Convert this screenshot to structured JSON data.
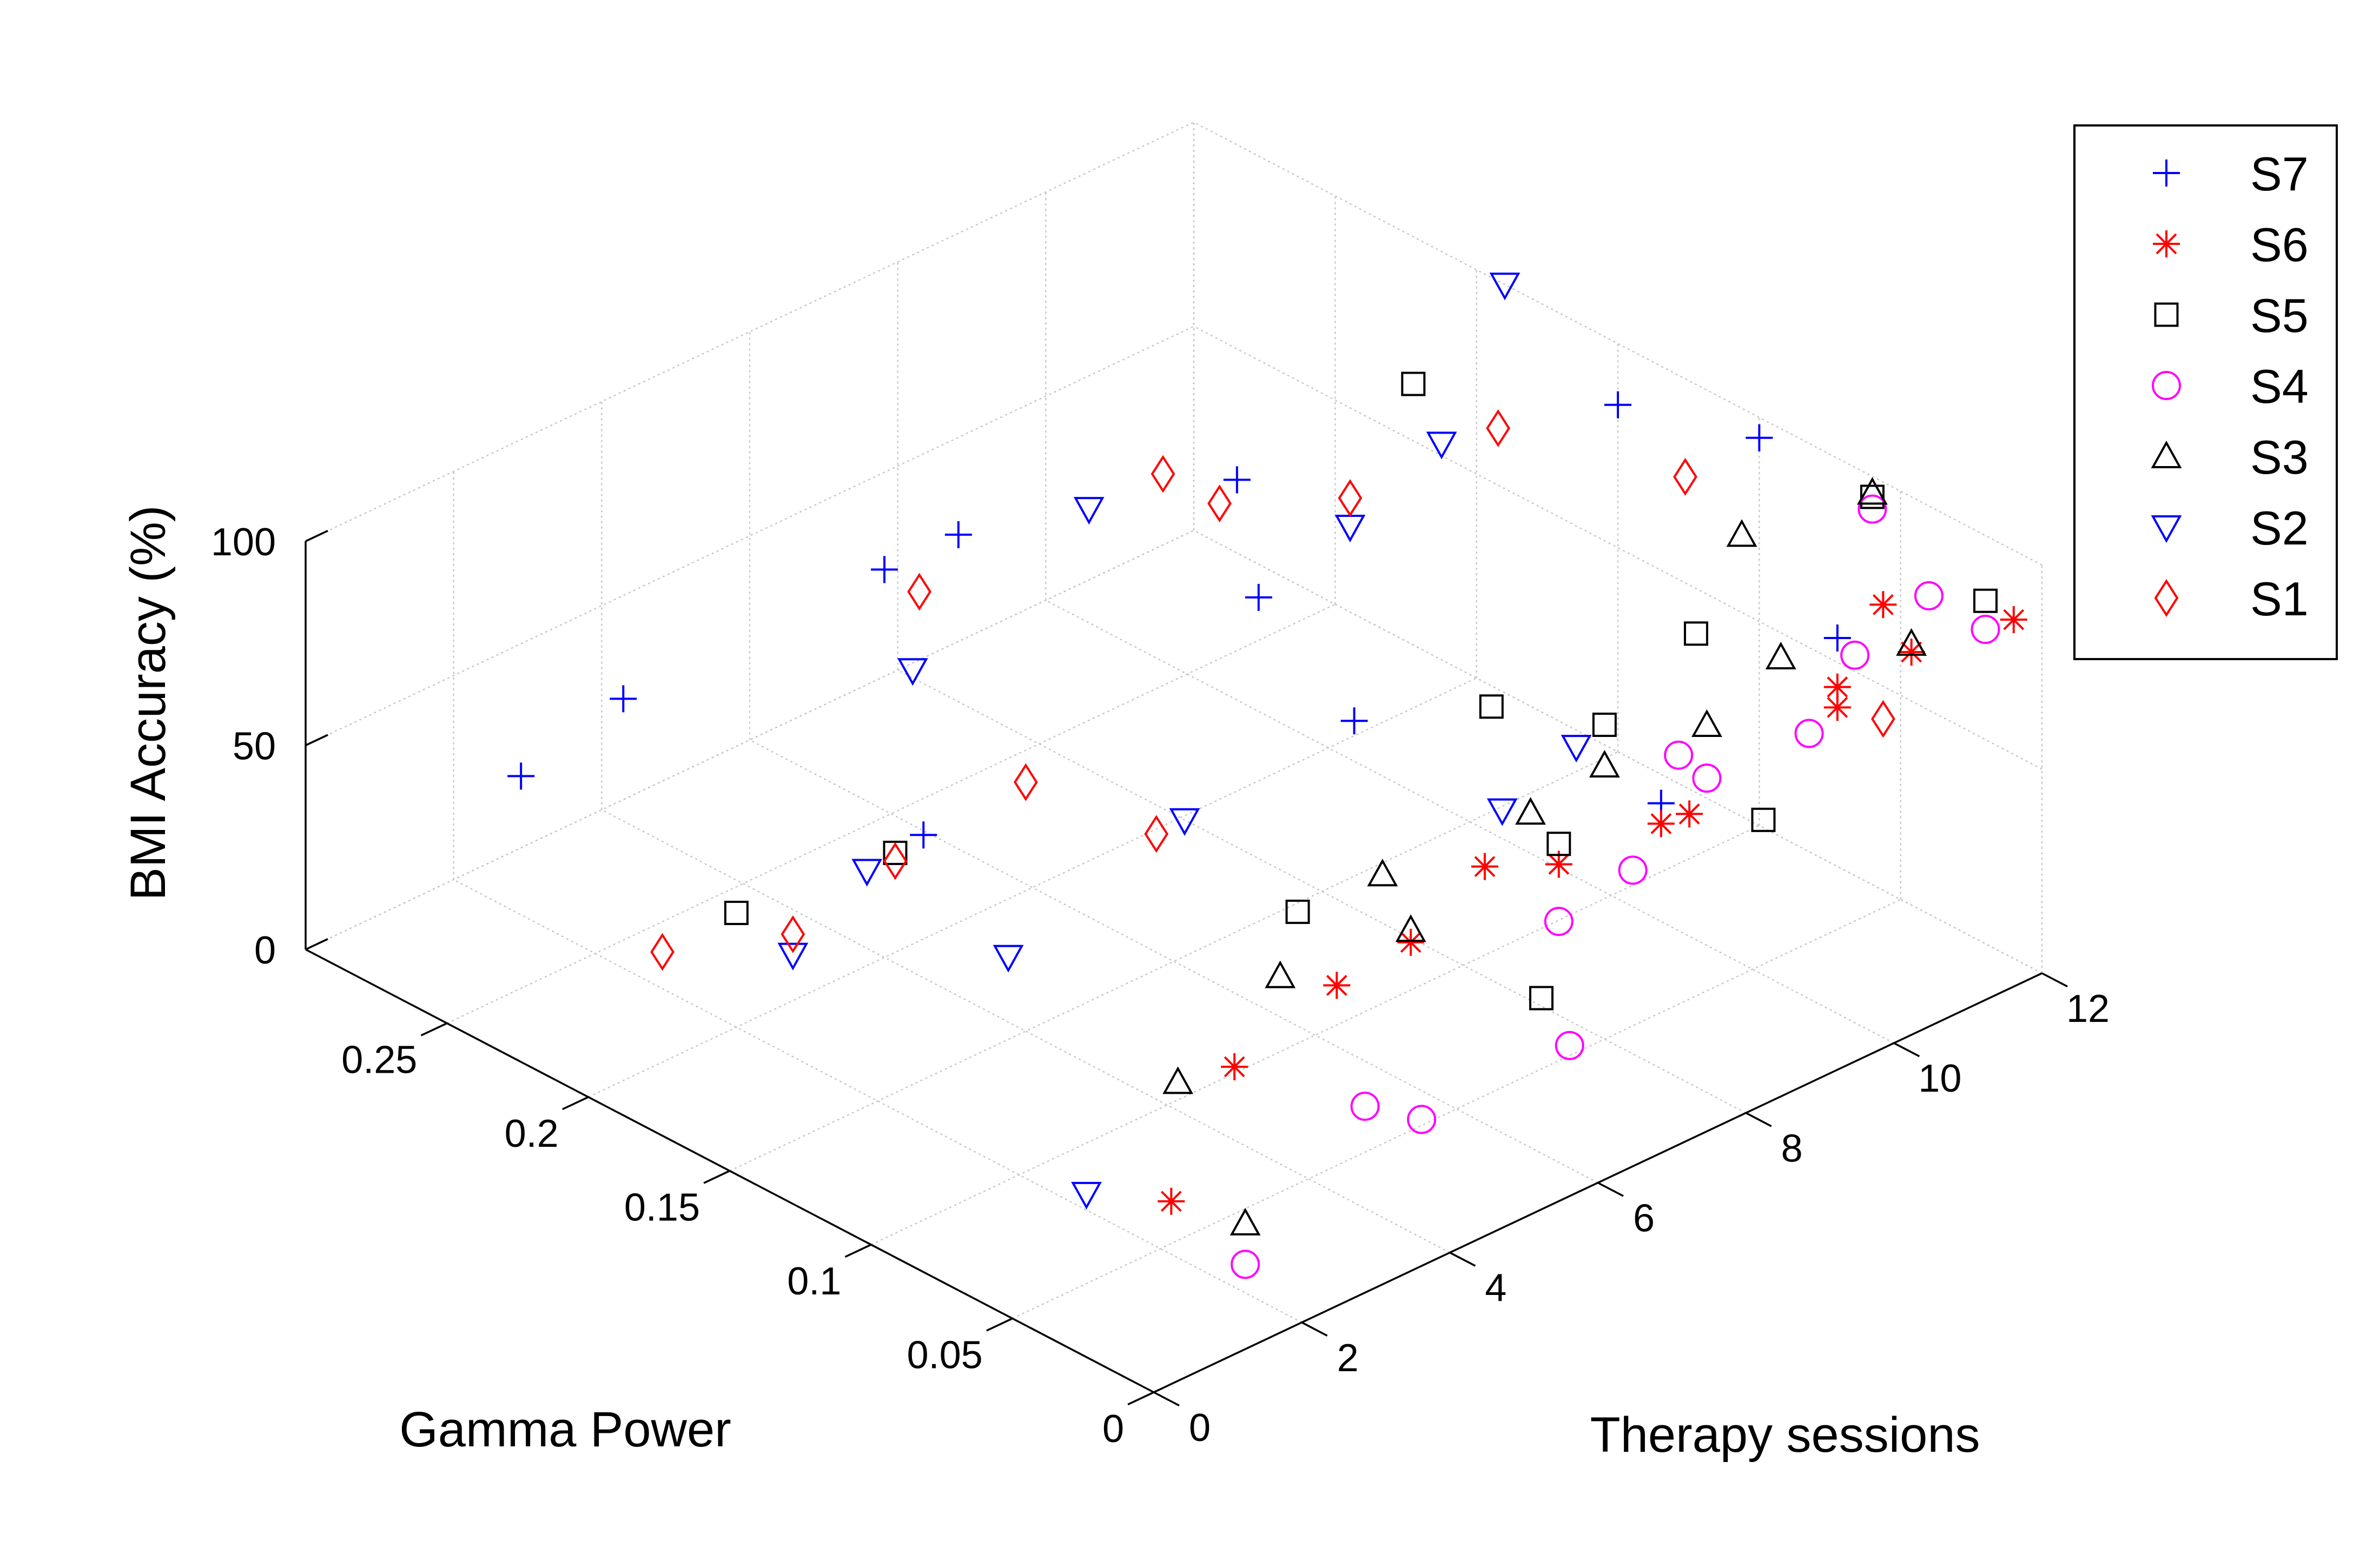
{
  "chart_data": {
    "type": "scatter3d",
    "xlabel": "Therapy sessions",
    "ylabel": "Gamma Power",
    "zlabel": "BMI Accuracy (%)",
    "xlim": [
      0,
      12
    ],
    "ylim": [
      0,
      0.3
    ],
    "zlim": [
      0,
      100
    ],
    "xticks": [
      0,
      2,
      4,
      6,
      8,
      10,
      12
    ],
    "yticks": [
      0,
      0.05,
      0.1,
      0.15,
      0.2,
      0.25
    ],
    "zticks": [
      0,
      50,
      100
    ],
    "xtick_labels": [
      "0",
      "2",
      "4",
      "6",
      "8",
      "10",
      "12"
    ],
    "ytick_labels": [
      "0",
      "0.05",
      "0.1",
      "0.15",
      "0.2",
      "0.25"
    ],
    "ztick_labels": [
      "0",
      "50",
      "100"
    ],
    "grid": true,
    "legend_position": "top-right",
    "series": [
      {
        "name": "S7",
        "marker": "plus",
        "color": "#0000ff",
        "points": [
          [
            1,
            0.25,
            52
          ],
          [
            2,
            0.24,
            66
          ],
          [
            3,
            0.16,
            53
          ],
          [
            4,
            0.2,
            95
          ],
          [
            5,
            0.2,
            95
          ],
          [
            5,
            0.06,
            100
          ],
          [
            6,
            0.12,
            100
          ],
          [
            8,
            0.03,
            65
          ],
          [
            8,
            0.18,
            90
          ],
          [
            10,
            0.02,
            92
          ],
          [
            12,
            0.1,
            95
          ],
          [
            12,
            0.15,
            85
          ]
        ]
      },
      {
        "name": "S6",
        "marker": "asterisk",
        "color": "#ff0000",
        "points": [
          [
            1,
            0.02,
            31
          ],
          [
            3,
            0.05,
            36
          ],
          [
            4,
            0.04,
            51
          ],
          [
            5,
            0.04,
            53
          ],
          [
            6,
            0.04,
            63
          ],
          [
            7,
            0.04,
            55
          ],
          [
            8,
            0.02,
            66
          ],
          [
            8,
            0.03,
            60
          ],
          [
            10,
            0.02,
            75
          ],
          [
            10,
            0.02,
            80
          ],
          [
            11,
            0.02,
            80
          ],
          [
            11,
            0.03,
            88
          ],
          [
            12,
            0.01,
            83
          ]
        ]
      },
      {
        "name": "S5",
        "marker": "square",
        "color": "#000000",
        "points": [
          [
            2,
            0.2,
            28
          ],
          [
            3,
            0.17,
            45
          ],
          [
            5,
            0.08,
            46
          ],
          [
            6,
            0.02,
            38
          ],
          [
            7,
            0.04,
            60
          ],
          [
            8,
            0.09,
            67
          ],
          [
            8,
            0.05,
            77
          ],
          [
            9,
            0.02,
            56
          ],
          [
            10,
            0.07,
            75
          ],
          [
            10,
            0.17,
            100
          ],
          [
            12,
            0.02,
            84
          ],
          [
            12,
            0.06,
            95
          ]
        ]
      },
      {
        "name": "S4",
        "marker": "circle",
        "color": "#ff00ff",
        "points": [
          [
            2,
            0.02,
            7
          ],
          [
            4,
            0.03,
            25
          ],
          [
            4,
            0.01,
            29
          ],
          [
            6,
            0.01,
            30
          ],
          [
            7,
            0.04,
            41
          ],
          [
            8,
            0.04,
            45
          ],
          [
            9,
            0.05,
            61
          ],
          [
            9,
            0.04,
            59
          ],
          [
            10,
            0.03,
            65
          ],
          [
            11,
            0.04,
            72
          ],
          [
            12,
            0.04,
            78
          ],
          [
            12,
            0.02,
            77
          ],
          [
            12,
            0.06,
            92
          ]
        ]
      },
      {
        "name": "S3",
        "marker": "triangle-up",
        "color": "#000000",
        "points": [
          [
            2,
            0.02,
            17
          ],
          [
            3,
            0.07,
            25
          ],
          [
            4,
            0.06,
            46
          ],
          [
            5,
            0.04,
            56
          ],
          [
            5,
            0.05,
            66
          ],
          [
            7,
            0.05,
            64
          ],
          [
            8,
            0.05,
            67
          ],
          [
            9,
            0.04,
            72
          ],
          [
            10,
            0.04,
            80
          ],
          [
            11,
            0.02,
            82
          ],
          [
            11,
            0.08,
            87
          ],
          [
            12,
            0.06,
            96
          ]
        ]
      },
      {
        "name": "S2",
        "marker": "triangle-down",
        "color": "#0000ff",
        "points": [
          [
            1,
            0.05,
            22
          ],
          [
            2,
            0.18,
            25
          ],
          [
            3,
            0.13,
            34
          ],
          [
            3,
            0.18,
            37
          ],
          [
            4,
            0.19,
            74
          ],
          [
            5,
            0.12,
            54
          ],
          [
            6,
            0.18,
            100
          ],
          [
            7,
            0.06,
            61
          ],
          [
            8,
            0.14,
            93
          ],
          [
            8,
            0.06,
            68
          ],
          [
            10,
            0.16,
            89
          ],
          [
            12,
            0.19,
            100
          ]
        ]
      },
      {
        "name": "S1",
        "marker": "diamond",
        "color": "#ff0000",
        "points": [
          [
            1,
            0.2,
            27
          ],
          [
            2,
            0.18,
            30
          ],
          [
            3,
            0.17,
            43
          ],
          [
            4,
            0.15,
            61
          ],
          [
            5,
            0.13,
            47
          ],
          [
            6,
            0.24,
            58
          ],
          [
            7,
            0.18,
            100
          ],
          [
            7,
            0.16,
            100
          ],
          [
            8,
            0.14,
            100
          ],
          [
            10,
            0.14,
            100
          ],
          [
            11,
            0.03,
            60
          ],
          [
            11,
            0.1,
            94
          ]
        ]
      }
    ]
  }
}
